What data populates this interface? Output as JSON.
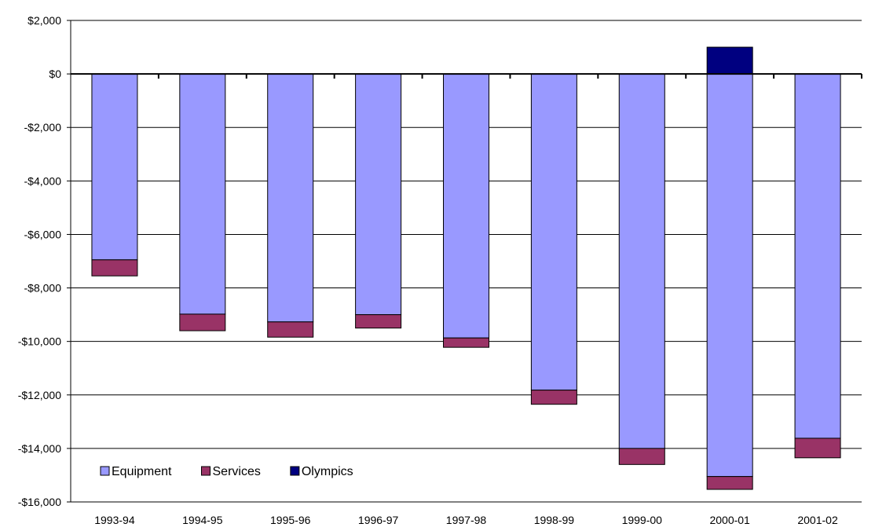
{
  "chart_data": {
    "type": "bar",
    "stacked": true,
    "title": "",
    "xlabel": "",
    "ylabel": "",
    "categories": [
      "1993-94",
      "1994-95",
      "1995-96",
      "1996-97",
      "1997-98",
      "1998-99",
      "1999-00",
      "2000-01",
      "2001-02"
    ],
    "series": [
      {
        "name": "Equipment",
        "color": "#9999ff",
        "values": [
          -6950,
          -8980,
          -9270,
          -9000,
          -9870,
          -11820,
          -14000,
          -15050,
          -13620
        ]
      },
      {
        "name": "Services",
        "color": "#993366",
        "values": [
          -600,
          -620,
          -570,
          -500,
          -350,
          -530,
          -600,
          -480,
          -730
        ]
      },
      {
        "name": "Olympics",
        "color": "#000080",
        "values": [
          0,
          0,
          0,
          0,
          0,
          0,
          0,
          1000,
          0
        ]
      }
    ],
    "ylim": [
      -16000,
      2000
    ],
    "yticks": [
      2000,
      0,
      -2000,
      -4000,
      -6000,
      -8000,
      -10000,
      -12000,
      -14000,
      -16000
    ],
    "ytick_labels": [
      "$2,000",
      "$0",
      "-$2,000",
      "-$4,000",
      "-$6,000",
      "-$8,000",
      "-$10,000",
      "-$12,000",
      "-$14,000",
      "-$16,000"
    ],
    "grid": true,
    "legend_position": "bottom-left"
  }
}
